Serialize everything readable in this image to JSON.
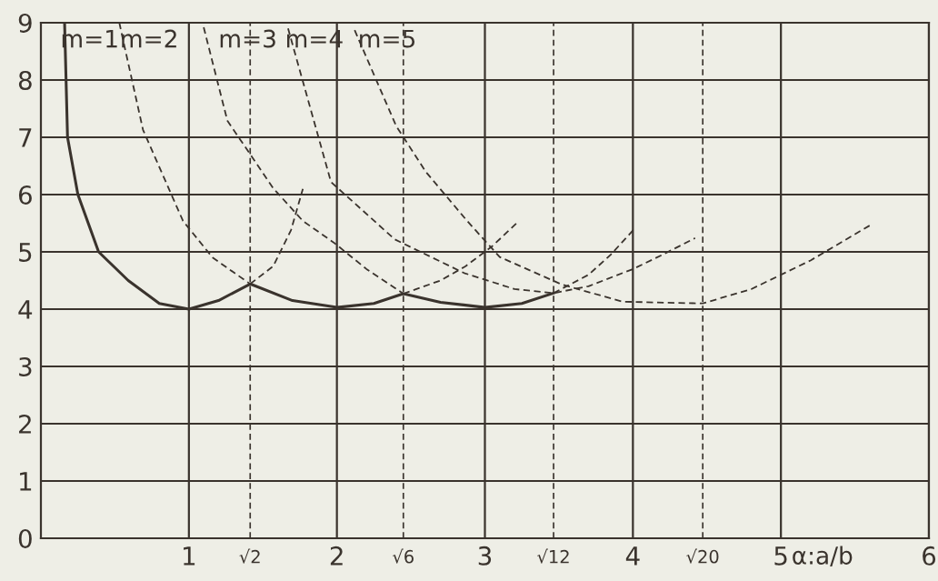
{
  "chart_data": {
    "type": "line",
    "xlabel": "α:a/b",
    "xlim": [
      0,
      6
    ],
    "ylim": [
      0,
      9
    ],
    "xticks": [
      1,
      2,
      3,
      4,
      5,
      6
    ],
    "yticks": [
      0,
      1,
      2,
      3,
      4,
      5,
      6,
      7,
      8,
      9
    ],
    "grid": true,
    "legend": false,
    "marker": "none",
    "series": [
      {
        "color": "#3a332d",
        "line_style": "solid",
        "x": [
          0.16,
          0.18,
          0.25,
          0.39,
          0.59,
          0.8,
          1.0,
          1.2,
          1.414,
          1.7,
          2.0,
          2.25,
          2.449,
          2.7,
          3.0,
          3.25,
          3.464
        ],
        "values": [
          9,
          7,
          6,
          5,
          4.5,
          4.1,
          4.0,
          4.15,
          4.44,
          4.15,
          4.03,
          4.1,
          4.27,
          4.12,
          4.03,
          4.1,
          4.28
        ]
      },
      {
        "color": "#3a332d",
        "line_style": "dashed",
        "x": [
          1.414,
          1.57,
          1.69,
          1.77
        ],
        "values": [
          4.44,
          4.75,
          5.38,
          6.1
        ]
      },
      {
        "color": "#3a332d",
        "line_style": "dashed",
        "x": [
          0.53,
          0.55,
          0.69,
          0.96,
          1.16,
          1.414,
          null,
          2.449,
          2.7,
          2.87,
          3.05,
          3.23
        ],
        "values": [
          9,
          8.76,
          7.13,
          5.54,
          4.9,
          4.44,
          null,
          4.27,
          4.5,
          4.75,
          5.1,
          5.54
        ]
      },
      {
        "color": "#3a332d",
        "line_style": "dashed",
        "x": [
          1.1,
          1.26,
          1.57,
          1.77,
          1.98,
          2.2,
          2.449,
          null,
          3.464,
          3.7,
          3.85,
          4.02
        ],
        "values": [
          8.92,
          7.29,
          6.11,
          5.54,
          5.16,
          4.7,
          4.27,
          null,
          4.28,
          4.6,
          4.95,
          5.43
        ]
      },
      {
        "color": "#3a332d",
        "line_style": "dashed",
        "x": [
          1.67,
          1.96,
          2.39,
          2.86,
          3.2,
          3.464,
          3.7,
          4.0,
          4.2,
          4.42
        ],
        "values": [
          8.9,
          6.22,
          5.22,
          4.63,
          4.35,
          4.28,
          4.4,
          4.7,
          4.95,
          5.24
        ]
      },
      {
        "color": "#3a332d",
        "line_style": "dashed",
        "x": [
          2.12,
          2.4,
          2.6,
          2.88,
          3.1,
          3.52,
          3.93,
          4.472,
          4.8,
          5.2,
          5.6
        ],
        "values": [
          8.87,
          7.2,
          6.4,
          5.54,
          4.91,
          4.43,
          4.13,
          4.1,
          4.35,
          4.85,
          5.46
        ]
      }
    ],
    "ref_lines": [
      {
        "axis": "x",
        "value": 1.414,
        "label": "√2",
        "color": "#3a332d",
        "line_style": "dashed"
      },
      {
        "axis": "x",
        "value": 2.449,
        "label": "√6",
        "color": "#3a332d",
        "line_style": "dashed"
      },
      {
        "axis": "x",
        "value": 3.464,
        "label": "√12",
        "color": "#3a332d",
        "line_style": "dashed"
      },
      {
        "axis": "x",
        "value": 4.472,
        "label": "√20",
        "color": "#3a332d",
        "line_style": "dashed"
      }
    ],
    "annotations": [
      "m=1",
      "m=2",
      "m=3",
      "m=4",
      "m=5"
    ]
  }
}
